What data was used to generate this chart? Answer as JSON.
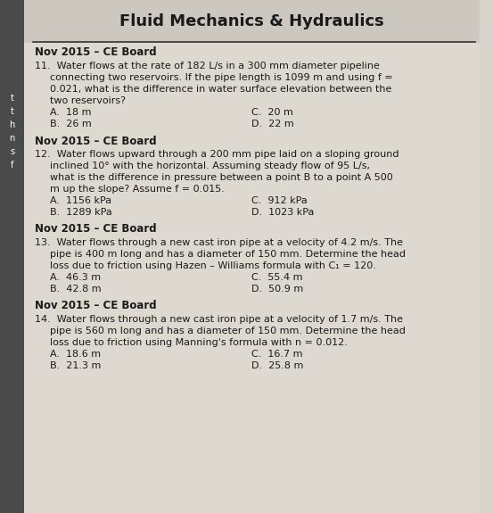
{
  "title": "Fluid Mechanics & Hydraulics",
  "bg_color": "#d8d4cc",
  "content_bg": "#ddd9d0",
  "title_color": "#1a1a1a",
  "text_color": "#1a1a1a",
  "left_strip_color": "#5a5a5a",
  "questions": [
    {
      "header": "Nov 2015 – CE Board",
      "number": "11.",
      "body": "Water flows at the rate of 182 L/s in a 300 mm diameter pipeline\nconnecting two reservoirs. If the pipe length is 1099 m and using f =\n0.021, what is the difference in water surface elevation between the\ntwo reservoirs?",
      "choices_left": [
        "A.  18 m",
        "B.  26 m"
      ],
      "choices_right": [
        "C.  20 m",
        "D.  22 m"
      ]
    },
    {
      "header": "Nov 2015 – CE Board",
      "number": "12.",
      "body": "Water flows upward through a 200 mm pipe laid on a sloping ground\ninclined 10° with the horizontal. Assuming steady flow of 95 L/s,\nwhat is the difference in pressure between a point B to a point A 500\nm up the slope? Assume f = 0.015.",
      "choices_left": [
        "A.  1156 kPa",
        "B.  1289 kPa"
      ],
      "choices_right": [
        "C.  912 kPa",
        "D.  1023 kPa"
      ]
    },
    {
      "header": "Nov 2015 – CE Board",
      "number": "13.",
      "body": "Water flows through a new cast iron pipe at a velocity of 4.2 m/s. The\npipe is 400 m long and has a diameter of 150 mm. Determine the head\nloss due to friction using Hazen – Williams formula with C₁ = 120.",
      "choices_left": [
        "A.  46.3 m",
        "B.  42.8 m"
      ],
      "choices_right": [
        "C.  55.4 m",
        "D.  50.9 m"
      ]
    },
    {
      "header": "Nov 2015 – CE Board",
      "number": "14.",
      "body": "Water flows through a new cast iron pipe at a velocity of 1.7 m/s. The\npipe is 560 m long and has a diameter of 150 mm. Determine the head\nloss due to friction using Manning's formula with n = 0.012.",
      "choices_left": [
        "A.  18.6 m",
        "B.  21.3 m"
      ],
      "choices_right": [
        "C.  16.7 m",
        "D.  25.8 m"
      ]
    }
  ],
  "left_margin_letters": [
    "t",
    "t",
    "h",
    "n",
    "s",
    "f"
  ],
  "figsize": [
    5.53,
    5.75
  ],
  "dpi": 100
}
